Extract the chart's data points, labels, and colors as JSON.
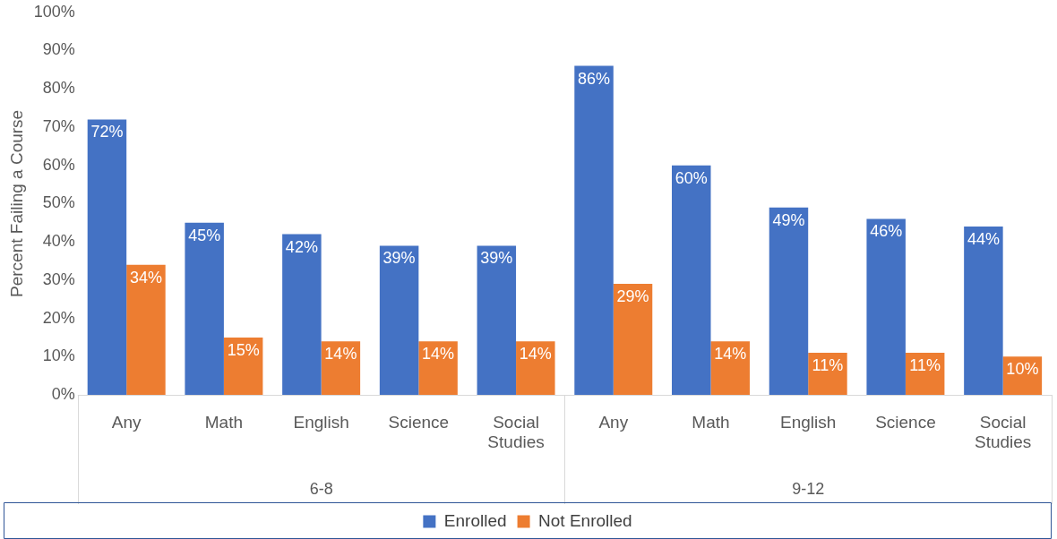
{
  "chart_data": {
    "type": "bar",
    "ylabel": "Percent Failing a Course",
    "categories": [
      "Any",
      "Math",
      "English",
      "Science",
      "Social Studies",
      "Any",
      "Math",
      "English",
      "Science",
      "Social Studies"
    ],
    "series": [
      {
        "name": "Enrolled",
        "color": "#4472c4",
        "values": [
          72,
          45,
          42,
          39,
          39,
          86,
          60,
          49,
          46,
          44
        ],
        "value_labels": [
          "72%",
          "45%",
          "42%",
          "39%",
          "39%",
          "86%",
          "60%",
          "49%",
          "46%",
          "44%"
        ]
      },
      {
        "name": "Not Enrolled",
        "color": "#ed7d31",
        "values": [
          34,
          15,
          14,
          14,
          14,
          29,
          14,
          11,
          11,
          10
        ],
        "value_labels": [
          "34%",
          "15%",
          "14%",
          "14%",
          "14%",
          "29%",
          "14%",
          "11%",
          "11%",
          "10%"
        ]
      }
    ],
    "annotations": [
      "6-8",
      "9-12"
    ],
    "ylim": [
      0,
      100
    ],
    "yticks": [
      {
        "value": 0,
        "label": "0%"
      },
      {
        "value": 10,
        "label": "10%"
      },
      {
        "value": 20,
        "label": "20%"
      },
      {
        "value": 30,
        "label": "30%"
      },
      {
        "value": 40,
        "label": "40%"
      },
      {
        "value": 50,
        "label": "50%"
      },
      {
        "value": 60,
        "label": "60%"
      },
      {
        "value": 70,
        "label": "70%"
      },
      {
        "value": 80,
        "label": "80%"
      },
      {
        "value": 90,
        "label": "90%"
      },
      {
        "value": 100,
        "label": "100%"
      }
    ],
    "grid": false,
    "legend": "bottom"
  }
}
